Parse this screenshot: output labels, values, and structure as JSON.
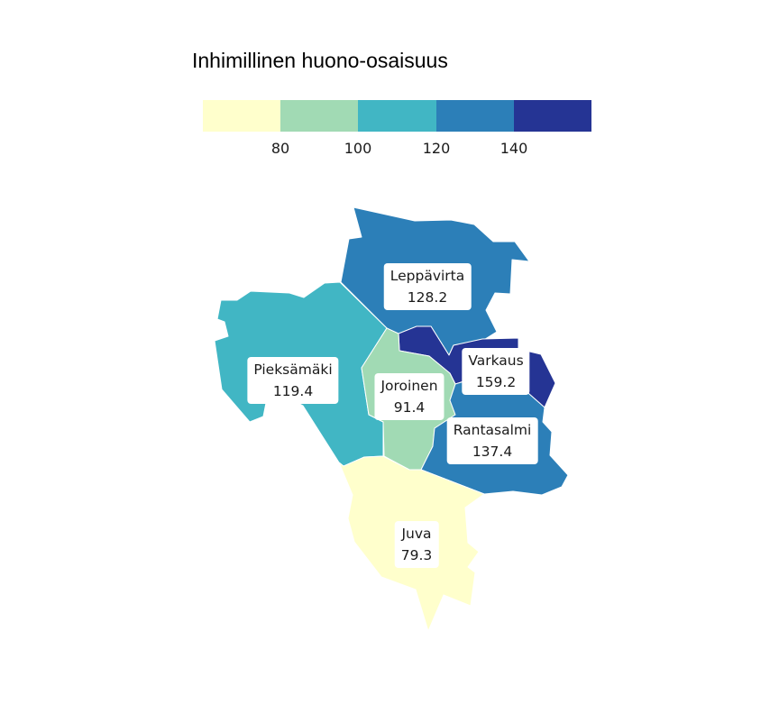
{
  "legend": {
    "title": "Inhimillinen huono-osaisuus",
    "colors": [
      "#ffffcc",
      "#a1dab4",
      "#41b6c4",
      "#2c7fb8",
      "#253494"
    ],
    "ticks": [
      "80",
      "100",
      "120",
      "140"
    ]
  },
  "regions": [
    {
      "name": "Leppävirta",
      "value": "128.2",
      "color": "#2c7fb8"
    },
    {
      "name": "Pieksämäki",
      "value": "119.4",
      "color": "#41b6c4"
    },
    {
      "name": "Varkaus",
      "value": "159.2",
      "color": "#253494"
    },
    {
      "name": "Joroinen",
      "value": "91.4",
      "color": "#a1dab4"
    },
    {
      "name": "Rantasalmi",
      "value": "137.4",
      "color": "#2c7fb8"
    },
    {
      "name": "Juva",
      "value": "79.3",
      "color": "#ffffcc"
    }
  ]
}
